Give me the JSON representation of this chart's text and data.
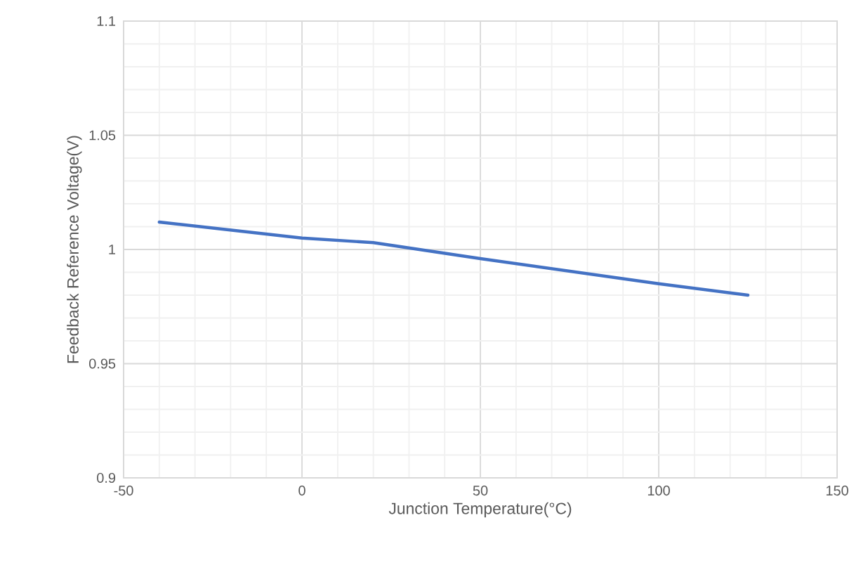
{
  "chart_data": {
    "type": "line",
    "xlabel": "Junction Temperature(°C)",
    "ylabel": "Feedback Reference Voltage(V)",
    "xlim": [
      -50,
      150
    ],
    "xticks": [
      -50,
      0,
      50,
      100,
      150
    ],
    "ylim": [
      0.9,
      1.1
    ],
    "yticks": [
      0.9,
      0.95,
      1,
      1.05,
      1.1
    ],
    "grid": true,
    "series": [
      {
        "color": "#4472c4",
        "x": [
          -40,
          0,
          20,
          50,
          100,
          125
        ],
        "values": [
          1.012,
          1.005,
          1.003,
          0.996,
          0.985,
          0.98
        ]
      }
    ]
  }
}
